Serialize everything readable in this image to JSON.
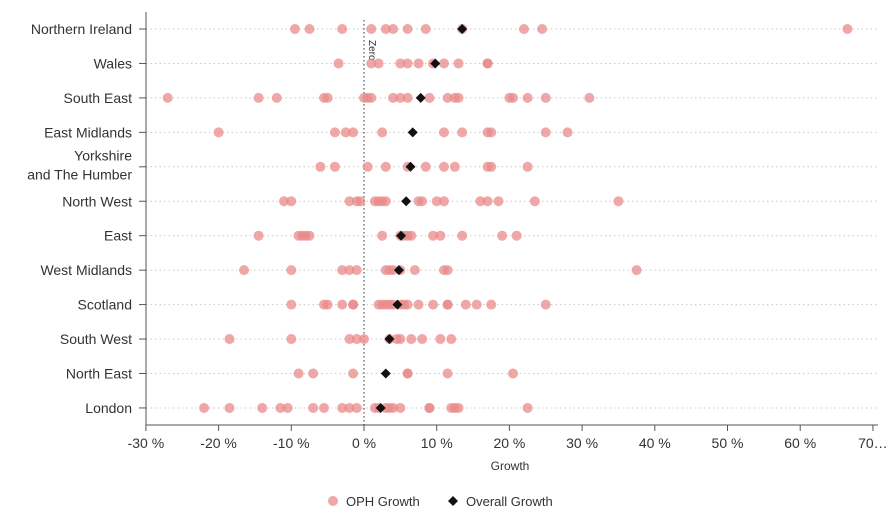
{
  "chart_data": {
    "type": "scatter",
    "xlabel": "Growth",
    "ylabel": "",
    "xlim": [
      -30,
      70
    ],
    "x_ticks": [
      -30,
      -20,
      -10,
      0,
      10,
      20,
      30,
      40,
      50,
      60,
      70
    ],
    "x_tick_labels": [
      "-30 %",
      "-20 %",
      "-10 %",
      "0 %",
      "10 %",
      "20 %",
      "30 %",
      "40 %",
      "50 %",
      "60 %",
      "70…"
    ],
    "reference_line": {
      "x": 0,
      "label": "Zero"
    },
    "grid": "horizontal dotted",
    "legend_position": "bottom",
    "categories": [
      [
        "Northern Ireland"
      ],
      [
        "Wales"
      ],
      [
        "South East"
      ],
      [
        "East Midlands"
      ],
      [
        "Yorkshire",
        "and The Humber"
      ],
      [
        "North West"
      ],
      [
        "East"
      ],
      [
        "West Midlands"
      ],
      [
        "Scotland"
      ],
      [
        "South West"
      ],
      [
        "North East"
      ],
      [
        "London"
      ]
    ],
    "series": [
      {
        "name": "OPH Growth",
        "marker": "circle",
        "color": "#e9898a",
        "points_by_category": [
          [
            -9.5,
            -7.5,
            -3,
            1,
            3,
            4,
            6,
            8.5,
            13.5,
            22,
            24.5,
            66.5
          ],
          [
            -3.5,
            1,
            2,
            5,
            6,
            7.5,
            9.5,
            11,
            13,
            17,
            17
          ],
          [
            -27,
            -14.5,
            -12,
            -5.5,
            -5,
            0,
            0.5,
            1,
            4,
            5,
            6,
            9,
            11.5,
            12.5,
            13,
            20,
            20.5,
            22.5,
            25,
            31
          ],
          [
            -20,
            -4,
            -2.5,
            -1.5,
            2.5,
            11,
            13.5,
            17,
            17.5,
            25,
            28
          ],
          [
            -6,
            -4,
            0.5,
            3,
            6,
            8.5,
            11,
            12.5,
            17,
            17.5,
            22.5
          ],
          [
            -11,
            -10,
            -2,
            -1,
            -0.5,
            1.5,
            2,
            2.5,
            3,
            7.5,
            8,
            10,
            11,
            16,
            17,
            18.5,
            23.5,
            35
          ],
          [
            -14.5,
            -9,
            -8.5,
            -8,
            -7.5,
            2.5,
            5,
            5.5,
            6,
            6.5,
            9.5,
            10.5,
            13.5,
            19,
            21
          ],
          [
            -16.5,
            -10,
            -3,
            -2,
            -1,
            3,
            3.5,
            4,
            5,
            7,
            11,
            11.5,
            37.5
          ],
          [
            -10,
            -5.5,
            -5,
            -3,
            -1.5,
            -1.5,
            2,
            2.5,
            3,
            3.5,
            4,
            5,
            5.5,
            6,
            7.5,
            9.5,
            11.5,
            11.5,
            14,
            15.5,
            17.5,
            25
          ],
          [
            -18.5,
            -10,
            -2,
            -1,
            0,
            3.5,
            4.5,
            5,
            6.5,
            8,
            10.5,
            12
          ],
          [
            -9,
            -7,
            -1.5,
            6,
            6,
            11.5,
            20.5
          ],
          [
            -22,
            -18.5,
            -14,
            -11.5,
            -10.5,
            -7,
            -5.5,
            -3,
            -2,
            -1,
            1.5,
            2,
            3,
            3.5,
            4,
            5,
            9,
            9,
            12,
            12.5,
            13,
            22.5
          ]
        ]
      },
      {
        "name": "Overall Growth",
        "marker": "diamond",
        "color": "#111111",
        "points_by_category": [
          13.5,
          9.8,
          7.8,
          6.7,
          6.4,
          5.8,
          5.1,
          4.8,
          4.6,
          3.5,
          3.0,
          2.3
        ]
      }
    ]
  }
}
